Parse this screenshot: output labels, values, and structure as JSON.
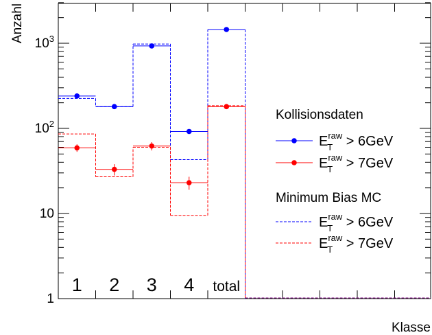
{
  "chart_data": {
    "type": "bar",
    "categories": [
      "1",
      "2",
      "3",
      "4",
      "total"
    ],
    "xlabel": "Klasse",
    "ylabel": "Anzahl",
    "yscale": "log",
    "ylim": [
      1,
      3000
    ],
    "y_tick_labels": [
      "1",
      "10",
      "10²",
      "10³"
    ],
    "grid": false,
    "legend_position": "right",
    "legend_groups": [
      {
        "title": "Kollisionsdaten"
      },
      {
        "title": "Minimum Bias MC"
      }
    ],
    "series": [
      {
        "name": "E_T^raw > 6GeV",
        "group": "Kollisionsdaten",
        "style": "points",
        "color": "#0000ff",
        "values": [
          240,
          180,
          930,
          92,
          1450
        ],
        "errors": [
          8,
          6,
          15,
          6,
          20
        ]
      },
      {
        "name": "E_T^raw > 7GeV",
        "group": "Kollisionsdaten",
        "style": "points",
        "color": "#ff0000",
        "values": [
          59,
          33,
          62,
          23,
          180
        ],
        "errors": [
          6,
          5,
          7,
          4,
          8
        ]
      },
      {
        "name": "E_T^raw > 6GeV",
        "group": "Minimum Bias MC",
        "style": "dashed-step",
        "color": "#0000ff",
        "values": [
          225,
          180,
          980,
          43,
          1450
        ]
      },
      {
        "name": "E_T^raw > 7GeV",
        "group": "Minimum Bias MC",
        "style": "dashed-step",
        "color": "#ff0000",
        "values": [
          86,
          27,
          60,
          9.5,
          185
        ]
      }
    ],
    "legend_labels": {
      "e": "E",
      "sub": "T",
      "sup": "raw",
      "cut6": " > 6GeV",
      "cut7": " > 7GeV"
    }
  }
}
